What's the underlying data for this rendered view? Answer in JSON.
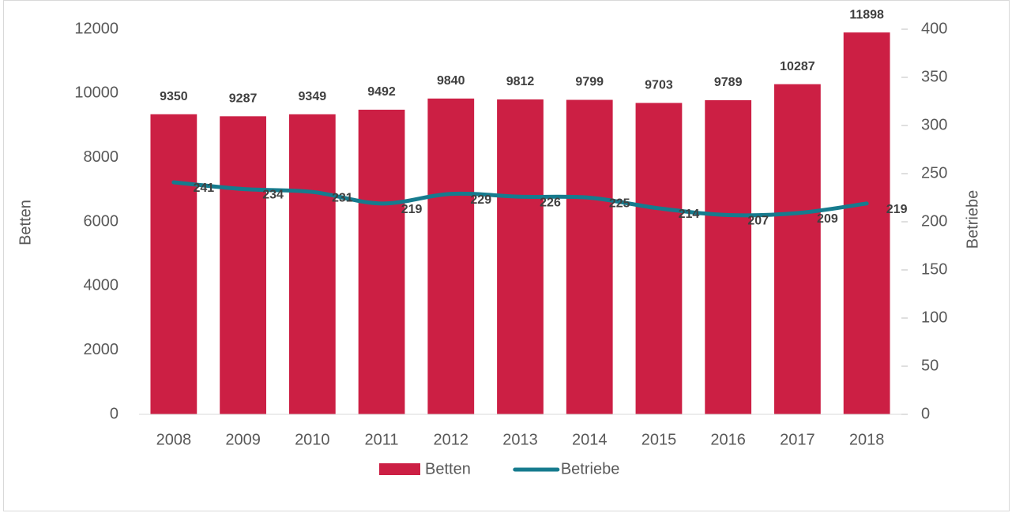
{
  "chart_data": {
    "type": "bar",
    "categories": [
      "2008",
      "2009",
      "2010",
      "2011",
      "2012",
      "2013",
      "2014",
      "2015",
      "2016",
      "2017",
      "2018"
    ],
    "series": [
      {
        "name": "Betten",
        "type": "bar",
        "color": "#cc1f44",
        "values": [
          9350,
          9287,
          9349,
          9492,
          9840,
          9812,
          9799,
          9703,
          9789,
          10287,
          11898
        ]
      },
      {
        "name": "Betriebe",
        "type": "line",
        "axis": "y2",
        "color": "#167b8e",
        "values": [
          241,
          234,
          231,
          219,
          229,
          226,
          225,
          214,
          207,
          209,
          219
        ]
      }
    ],
    "ylabel": "Betten",
    "y2label": "Betriebe",
    "ylim": [
      0,
      12000
    ],
    "yticks": [
      0,
      2000,
      4000,
      6000,
      8000,
      10000,
      12000
    ],
    "y2lim": [
      0,
      400
    ],
    "y2ticks": [
      0,
      50,
      100,
      150,
      200,
      250,
      300,
      350,
      400
    ],
    "grid": false,
    "legend": "bottom"
  }
}
